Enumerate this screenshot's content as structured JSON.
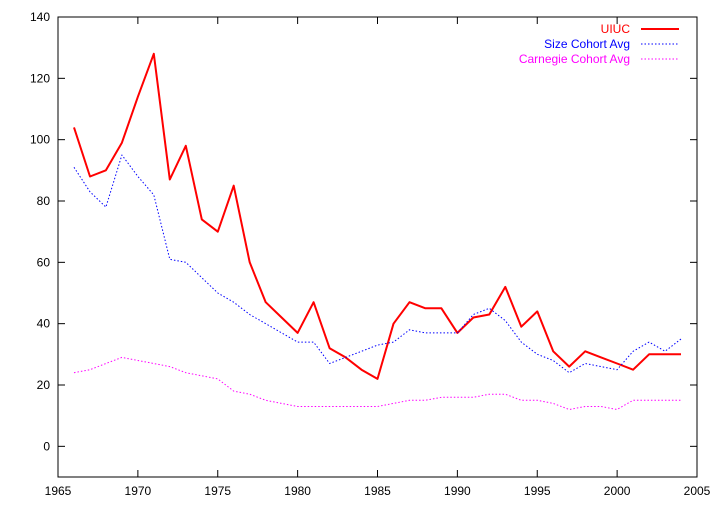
{
  "chart_data": {
    "type": "line",
    "title": "",
    "xlabel": "",
    "ylabel": "",
    "xlim": [
      1965,
      2005
    ],
    "ylim": [
      -10,
      140
    ],
    "grid": false,
    "legend_position": "top-right",
    "x_ticks": [
      1965,
      1970,
      1975,
      1980,
      1985,
      1990,
      1995,
      2000,
      2005
    ],
    "y_ticks": [
      0,
      20,
      40,
      60,
      80,
      100,
      120,
      140
    ],
    "series": [
      {
        "name": "UIUC",
        "color": "#ff0000",
        "style": "solid",
        "x": [
          1966,
          1967,
          1968,
          1969,
          1970,
          1971,
          1972,
          1973,
          1974,
          1975,
          1976,
          1977,
          1978,
          1979,
          1980,
          1981,
          1982,
          1983,
          1984,
          1985,
          1986,
          1987,
          1988,
          1989,
          1990,
          1991,
          1992,
          1993,
          1994,
          1995,
          1996,
          1997,
          1998,
          1999,
          2000,
          2001,
          2002,
          2003,
          2004
        ],
        "values": [
          104,
          88,
          90,
          99,
          114,
          128,
          87,
          98,
          74,
          70,
          85,
          60,
          47,
          42,
          37,
          47,
          32,
          29,
          25,
          22,
          40,
          47,
          45,
          45,
          37,
          42,
          43,
          52,
          39,
          44,
          31,
          26,
          31,
          29,
          27,
          25,
          30,
          30,
          30
        ]
      },
      {
        "name": "Size Cohort Avg",
        "color": "#0000ff",
        "style": "dotted",
        "x": [
          1966,
          1967,
          1968,
          1969,
          1970,
          1971,
          1972,
          1973,
          1974,
          1975,
          1976,
          1977,
          1978,
          1979,
          1980,
          1981,
          1982,
          1983,
          1984,
          1985,
          1986,
          1987,
          1988,
          1989,
          1990,
          1991,
          1992,
          1993,
          1994,
          1995,
          1996,
          1997,
          1998,
          1999,
          2000,
          2001,
          2002,
          2003,
          2004
        ],
        "values": [
          91,
          83,
          78,
          95,
          88,
          82,
          61,
          60,
          55,
          50,
          47,
          43,
          40,
          37,
          34,
          34,
          27,
          29,
          31,
          33,
          34,
          38,
          37,
          37,
          37,
          43,
          45,
          41,
          34,
          30,
          28,
          24,
          27,
          26,
          25,
          31,
          34,
          31,
          35
        ]
      },
      {
        "name": "Carnegie Cohort Avg",
        "color": "#ff00ff",
        "style": "dotted",
        "x": [
          1966,
          1967,
          1968,
          1969,
          1970,
          1971,
          1972,
          1973,
          1974,
          1975,
          1976,
          1977,
          1978,
          1979,
          1980,
          1981,
          1982,
          1983,
          1984,
          1985,
          1986,
          1987,
          1988,
          1989,
          1990,
          1991,
          1992,
          1993,
          1994,
          1995,
          1996,
          1997,
          1998,
          1999,
          2000,
          2001,
          2002,
          2003,
          2004
        ],
        "values": [
          24,
          25,
          27,
          29,
          28,
          27,
          26,
          24,
          23,
          22,
          18,
          17,
          15,
          14,
          13,
          13,
          13,
          13,
          13,
          13,
          14,
          15,
          15,
          16,
          16,
          16,
          17,
          17,
          15,
          15,
          14,
          12,
          13,
          13,
          12,
          15,
          15,
          15,
          15
        ]
      }
    ]
  }
}
